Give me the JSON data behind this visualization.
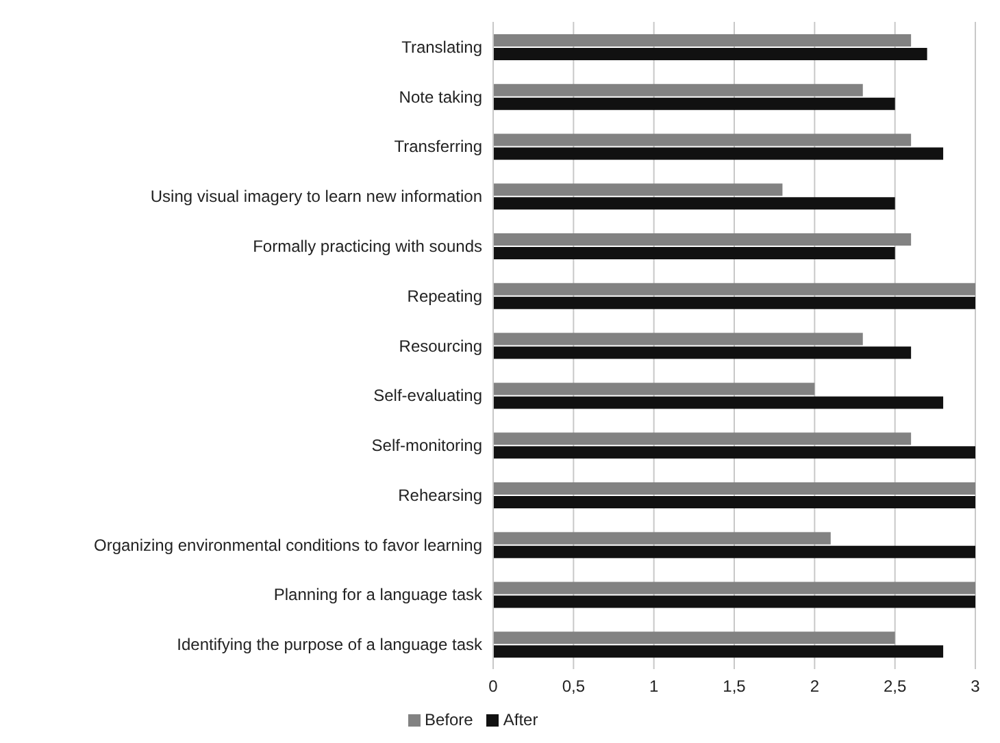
{
  "chart_data": {
    "type": "bar",
    "orientation": "horizontal",
    "categories": [
      "Translating",
      "Note taking",
      "Transferring",
      "Using visual imagery to learn new information",
      "Formally practicing with sounds",
      "Repeating",
      "Resourcing",
      "Self-evaluating",
      "Self-monitoring",
      "Rehearsing",
      "Organizing environmental conditions to favor learning",
      "Planning for a language task",
      "Identifying the purpose of a language task"
    ],
    "series": [
      {
        "name": "Before",
        "color": "#828282",
        "values": [
          2.6,
          2.3,
          2.6,
          1.8,
          2.6,
          3,
          2.3,
          2.0,
          2.6,
          3,
          2.1,
          3,
          2.5
        ]
      },
      {
        "name": "After",
        "color": "#111111",
        "values": [
          2.7,
          2.5,
          2.8,
          2.5,
          2.5,
          3,
          2.6,
          2.8,
          3,
          3,
          3,
          3,
          2.8
        ]
      }
    ],
    "xlim": [
      0,
      3
    ],
    "xticks": [
      0,
      {
        "value": 0.5,
        "label": "0,5"
      },
      1,
      {
        "value": 1.5,
        "label": "1,5"
      },
      2,
      {
        "value": 2.5,
        "label": "2,5"
      },
      3
    ],
    "grid": "x",
    "legend": "bottom"
  }
}
